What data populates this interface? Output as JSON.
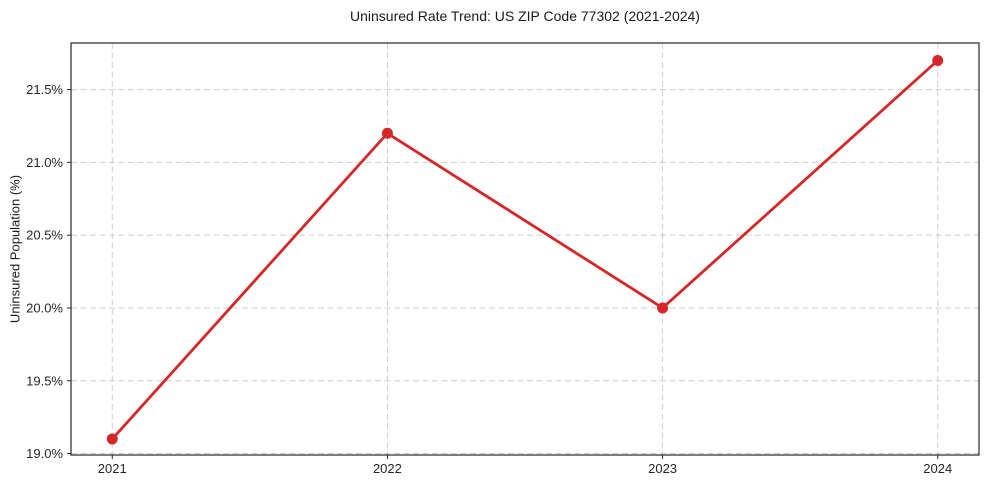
{
  "chart_data": {
    "type": "line",
    "title": "Uninsured Rate Trend: US ZIP Code 77302 (2021-2024)",
    "xlabel": "",
    "ylabel": "Uninsured Population (%)",
    "x": [
      2021,
      2022,
      2023,
      2024
    ],
    "values": [
      19.1,
      21.2,
      20.0,
      21.7
    ],
    "xticks": {
      "values": [
        2021,
        2022,
        2023,
        2024
      ],
      "labels": [
        "2021",
        "2022",
        "2023",
        "2024"
      ]
    },
    "yticks": {
      "values": [
        19.0,
        19.5,
        20.0,
        20.5,
        21.0,
        21.5
      ],
      "labels": [
        "19.0%",
        "19.5%",
        "20.0%",
        "20.5%",
        "21.0%",
        "21.5%"
      ]
    },
    "xlim": [
      2020.85,
      2024.15
    ],
    "ylim": [
      18.99,
      21.82
    ],
    "grid": true,
    "grid_style": "dashed",
    "legend": false,
    "marker": "circle",
    "colors": {
      "line": "#d62728",
      "marker": "#d62728",
      "grid": "#cccccc",
      "axis": "#262626",
      "text": "#262626",
      "background": "#ffffff"
    }
  }
}
